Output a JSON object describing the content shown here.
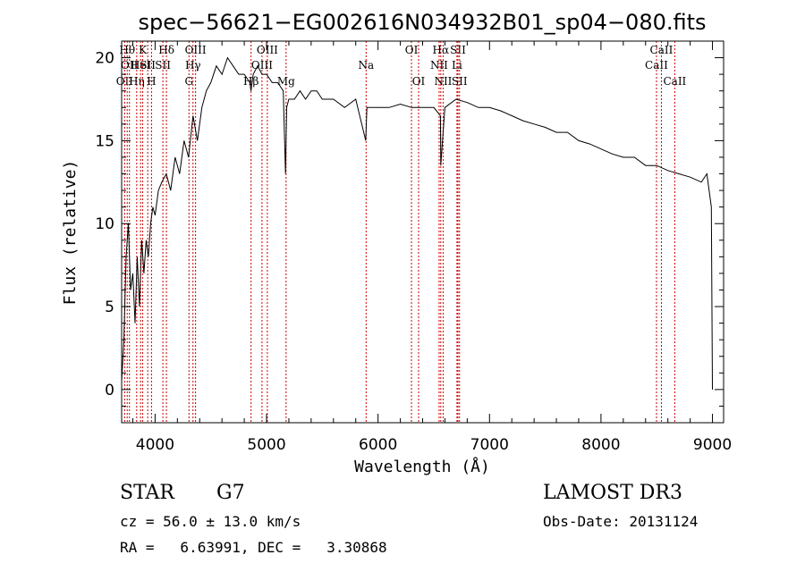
{
  "chart_data": {
    "type": "line",
    "title": "spec−56621−EG002616N034932B01_sp04−080.fits",
    "xlabel": "Wavelength (Å)",
    "ylabel": "Flux (relative)",
    "xlim": [
      3700,
      9100
    ],
    "ylim": [
      -2,
      21
    ],
    "xticks": [
      {
        "value": 4000,
        "label": "4000"
      },
      {
        "value": 5000,
        "label": "5000"
      },
      {
        "value": 6000,
        "label": "6000"
      },
      {
        "value": 7000,
        "label": "7000"
      },
      {
        "value": 8000,
        "label": "8000"
      },
      {
        "value": 9000,
        "label": "9000"
      }
    ],
    "yticks": [
      {
        "value": 0,
        "label": "0"
      },
      {
        "value": 5,
        "label": "5"
      },
      {
        "value": 10,
        "label": "10"
      },
      {
        "value": 15,
        "label": "15"
      },
      {
        "value": 20,
        "label": "20"
      }
    ],
    "grid": false,
    "series": [
      {
        "x": [
          3700,
          3720,
          3740,
          3760,
          3780,
          3800,
          3820,
          3840,
          3860,
          3880,
          3900,
          3920,
          3940,
          3960,
          3980,
          4000,
          4030,
          4060,
          4100,
          4140,
          4180,
          4220,
          4260,
          4300,
          4340,
          4380,
          4420,
          4460,
          4500,
          4550,
          4600,
          4650,
          4700,
          4750,
          4800,
          4850,
          4860,
          4880,
          4920,
          4960,
          5000,
          5050,
          5100,
          5150,
          5170,
          5180,
          5200,
          5250,
          5300,
          5350,
          5400,
          5450,
          5500,
          5600,
          5700,
          5800,
          5890,
          5900,
          5950,
          6000,
          6100,
          6200,
          6300,
          6400,
          6500,
          6560,
          6563,
          6600,
          6700,
          6800,
          6900,
          7000,
          7100,
          7200,
          7300,
          7400,
          7500,
          7600,
          7700,
          7800,
          7900,
          8000,
          8100,
          8200,
          8300,
          8400,
          8500,
          8600,
          8700,
          8800,
          8900,
          8950,
          8990,
          9000
        ],
        "y": [
          0.5,
          3,
          8,
          10,
          6,
          7,
          4,
          8,
          5,
          9,
          7,
          9,
          8,
          10,
          11,
          10.5,
          12,
          12.5,
          13,
          12,
          14,
          13,
          15,
          14,
          16.5,
          15,
          17,
          18,
          18.5,
          19.5,
          19,
          20,
          19.5,
          19,
          19,
          18.5,
          18,
          19,
          19.5,
          19,
          19,
          18.5,
          18.5,
          18,
          13,
          17,
          17.5,
          17.5,
          18,
          17.5,
          18,
          18,
          17.5,
          17.5,
          17,
          17.5,
          15,
          17,
          17,
          17,
          17,
          17.2,
          17,
          17,
          17,
          16.5,
          13.5,
          17,
          17.5,
          17.3,
          17,
          17,
          16.8,
          16.5,
          16.2,
          16,
          15.8,
          15.5,
          15.5,
          15,
          14.8,
          14.5,
          14.2,
          14,
          14,
          13.5,
          13.5,
          13.2,
          13,
          12.8,
          12.5,
          13,
          11,
          0
        ]
      }
    ],
    "line_markers": [
      {
        "wavelength": 3727,
        "label": "OII",
        "row": 3
      },
      {
        "wavelength": 3750,
        "label": "Hθ",
        "row": 1
      },
      {
        "wavelength": 3770,
        "label": "OII",
        "row": 2
      },
      {
        "wavelength": 3835,
        "label": "Hη",
        "row": 3
      },
      {
        "wavelength": 3870,
        "label": "HeI",
        "row": 2
      },
      {
        "wavelength": 3889,
        "label": "K",
        "row": 1
      },
      {
        "wavelength": 3934,
        "label": "SII",
        "row": 2
      },
      {
        "wavelength": 3968,
        "label": "H",
        "row": 3
      },
      {
        "wavelength": 4102,
        "label": "Hδ",
        "row": 1
      },
      {
        "wavelength": 4070,
        "label": "SII",
        "row": 2
      },
      {
        "wavelength": 4304,
        "label": "G",
        "row": 3
      },
      {
        "wavelength": 4340,
        "label": "Hγ",
        "row": 2
      },
      {
        "wavelength": 4363,
        "label": "OIII",
        "row": 1
      },
      {
        "wavelength": 4861,
        "label": "Hβ",
        "row": 3
      },
      {
        "wavelength": 4959,
        "label": "OIII",
        "row": 2
      },
      {
        "wavelength": 5007,
        "label": "OIII",
        "row": 1
      },
      {
        "wavelength": 5175,
        "label": "Mg",
        "row": 3
      },
      {
        "wavelength": 5893,
        "label": "Na",
        "row": 2
      },
      {
        "wavelength": 6300,
        "label": "OI",
        "row": 1
      },
      {
        "wavelength": 6364,
        "label": "OI",
        "row": 3
      },
      {
        "wavelength": 6548,
        "label": "NII",
        "row": 2
      },
      {
        "wavelength": 6563,
        "label": "Hα",
        "row": 1
      },
      {
        "wavelength": 6584,
        "label": "NII",
        "row": 3
      },
      {
        "wavelength": 6708,
        "label": "Li",
        "row": 2
      },
      {
        "wavelength": 6717,
        "label": "SII",
        "row": 1
      },
      {
        "wavelength": 6731,
        "label": "SII",
        "row": 3
      },
      {
        "wavelength": 8498,
        "label": "CaII",
        "row": 2
      },
      {
        "wavelength": 8542,
        "label": "CaII",
        "row": 1
      },
      {
        "wavelength": 8662,
        "label": "CaII",
        "row": 3
      }
    ],
    "line_color": "#000000",
    "marker_color": "#cc0000"
  },
  "info": {
    "object_class": "STAR",
    "subclass": "G7",
    "survey": "LAMOST DR3",
    "cz": "cz = 56.0 ± 13.0 km/s",
    "obs_date": "Obs-Date: 20131124",
    "radec": "RA =   6.63991, DEC =   3.30868"
  }
}
